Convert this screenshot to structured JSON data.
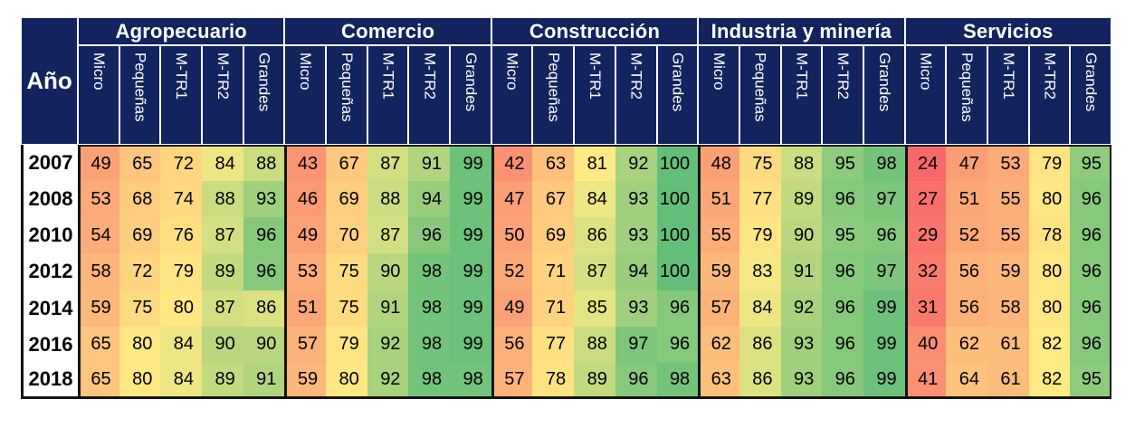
{
  "table": {
    "year_header": "Año",
    "size_categories": [
      "Micro",
      "Pequeñas",
      "M-TR1",
      "M-TR2",
      "Grandes"
    ],
    "groups": [
      "Agropecuario",
      "Comercio",
      "Construcción",
      "Industria y minería",
      "Servicios"
    ]
  },
  "colors": {
    "header_navy": "#12245E",
    "header_text": "#ffffff",
    "grid_black": "#141414",
    "scale_min_color": "#F8696B",
    "scale_mid_color": "#FFEB84",
    "scale_max_color": "#63BE7A"
  },
  "chart_data": {
    "type": "heatmap",
    "title": "",
    "row_axis_label": "Año",
    "column_groups": [
      "Agropecuario",
      "Comercio",
      "Construcción",
      "Industria y minería",
      "Servicios"
    ],
    "column_subcategories": [
      "Micro",
      "Pequeñas",
      "M-TR1",
      "M-TR2",
      "Grandes"
    ],
    "years": [
      "2007",
      "2008",
      "2010",
      "2012",
      "2014",
      "2016",
      "2018"
    ],
    "color_scale": {
      "min": 24,
      "mid": 82,
      "max": 100,
      "min_color": "#F8696B",
      "mid_color": "#FFEB84",
      "max_color": "#63BE7A"
    },
    "rows": [
      {
        "year": "2007",
        "values": [
          [
            49,
            65,
            72,
            84,
            88
          ],
          [
            43,
            67,
            87,
            91,
            99
          ],
          [
            42,
            63,
            81,
            92,
            100
          ],
          [
            48,
            75,
            88,
            95,
            98
          ],
          [
            24,
            47,
            53,
            79,
            95
          ]
        ]
      },
      {
        "year": "2008",
        "values": [
          [
            53,
            68,
            74,
            88,
            93
          ],
          [
            46,
            69,
            88,
            94,
            99
          ],
          [
            47,
            67,
            84,
            93,
            100
          ],
          [
            51,
            77,
            89,
            96,
            97
          ],
          [
            27,
            51,
            55,
            80,
            96
          ]
        ]
      },
      {
        "year": "2010",
        "values": [
          [
            54,
            69,
            76,
            87,
            96
          ],
          [
            49,
            70,
            87,
            96,
            99
          ],
          [
            50,
            69,
            86,
            93,
            100
          ],
          [
            55,
            79,
            90,
            95,
            96
          ],
          [
            29,
            52,
            55,
            78,
            96
          ]
        ]
      },
      {
        "year": "2012",
        "values": [
          [
            58,
            72,
            79,
            89,
            96
          ],
          [
            53,
            75,
            90,
            98,
            99
          ],
          [
            52,
            71,
            87,
            94,
            100
          ],
          [
            59,
            83,
            91,
            96,
            97
          ],
          [
            32,
            56,
            59,
            80,
            96
          ]
        ]
      },
      {
        "year": "2014",
        "values": [
          [
            59,
            75,
            80,
            87,
            86
          ],
          [
            51,
            75,
            91,
            98,
            99
          ],
          [
            49,
            71,
            85,
            93,
            96
          ],
          [
            57,
            84,
            92,
            96,
            99
          ],
          [
            31,
            56,
            58,
            80,
            96
          ]
        ]
      },
      {
        "year": "2016",
        "values": [
          [
            65,
            80,
            84,
            90,
            90
          ],
          [
            57,
            79,
            92,
            98,
            99
          ],
          [
            56,
            77,
            88,
            97,
            96
          ],
          [
            62,
            86,
            93,
            96,
            99
          ],
          [
            40,
            62,
            61,
            82,
            96
          ]
        ]
      },
      {
        "year": "2018",
        "values": [
          [
            65,
            80,
            84,
            89,
            91
          ],
          [
            59,
            80,
            92,
            98,
            98
          ],
          [
            57,
            78,
            89,
            96,
            98
          ],
          [
            63,
            86,
            93,
            96,
            99
          ],
          [
            41,
            64,
            61,
            82,
            95
          ]
        ]
      }
    ]
  }
}
